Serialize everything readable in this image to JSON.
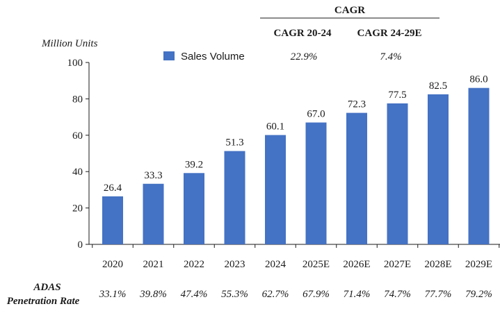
{
  "chart_data": {
    "type": "bar",
    "ylabel": "Million Units",
    "ylim": [
      0,
      100
    ],
    "yticks": [
      0,
      20,
      40,
      60,
      80,
      100
    ],
    "categories": [
      "2020",
      "2021",
      "2022",
      "2023",
      "2024",
      "2025E",
      "2026E",
      "2027E",
      "2028E",
      "2029E"
    ],
    "series": [
      {
        "name": "Sales Volume",
        "color": "#4472C4",
        "values": [
          26.4,
          33.3,
          39.2,
          51.3,
          60.1,
          67.0,
          72.3,
          77.5,
          82.5,
          86.0
        ],
        "labels": [
          "26.4",
          "33.3",
          "39.2",
          "51.3",
          "60.1",
          "67.0",
          "72.3",
          "77.5",
          "82.5",
          "86.0"
        ]
      }
    ],
    "grid": false,
    "legend_position": "top-left",
    "cagr": {
      "title": "CAGR",
      "columns": [
        {
          "header": "CAGR 20-24",
          "value": "22.9%"
        },
        {
          "header": "CAGR 24-29E",
          "value": "7.4%"
        }
      ]
    },
    "penetration": {
      "label_line1": "ADAS",
      "label_line2": "Penetration Rate",
      "values": [
        "33.1%",
        "39.8%",
        "47.4%",
        "55.3%",
        "62.7%",
        "67.9%",
        "71.4%",
        "74.7%",
        "77.7%",
        "79.2%"
      ]
    }
  }
}
